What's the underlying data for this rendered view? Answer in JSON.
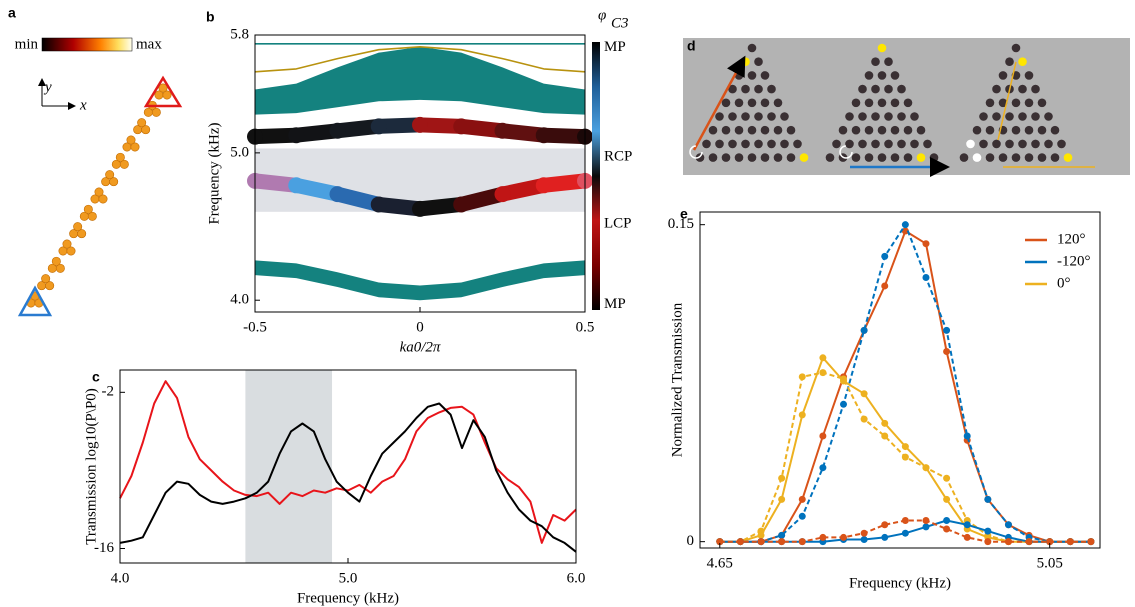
{
  "panel_a": {
    "label": "a",
    "colorbar": {
      "min": "min",
      "max": "max"
    },
    "axes": {
      "y": "y",
      "x": "x"
    }
  },
  "panel_d": {
    "label": "d"
  },
  "chart_data": [
    {
      "type": "band",
      "panel_label": "b",
      "xlabel": "ka0/2π",
      "ylabel": "Frequency (kHz)",
      "x": [
        -0.5,
        -0.375,
        -0.25,
        -0.125,
        0,
        0.125,
        0.25,
        0.375,
        0.5
      ],
      "xlim": [
        -0.5,
        0.5
      ],
      "ylim": [
        3.92,
        5.8
      ],
      "xticks": [
        -0.5,
        0,
        0.5
      ],
      "yticks": [
        {
          "value": 4.0,
          "label": "4.0"
        },
        {
          "value": 5.0,
          "label": "5.0"
        },
        5.8
      ],
      "shaded_range": [
        4.6,
        5.03
      ],
      "series": [
        {
          "kind": "area",
          "color": "#14827f",
          "upper": [
            5.43,
            5.47,
            5.58,
            5.68,
            5.72,
            5.68,
            5.58,
            5.47,
            5.43
          ],
          "lower": [
            5.26,
            5.27,
            5.31,
            5.35,
            5.36,
            5.35,
            5.31,
            5.27,
            5.26
          ]
        },
        {
          "kind": "area",
          "color": "#14827f",
          "upper": [
            4.27,
            4.25,
            4.19,
            4.12,
            4.1,
            4.12,
            4.19,
            4.25,
            4.27
          ],
          "lower": [
            4.17,
            4.15,
            4.09,
            4.02,
            4.0,
            4.02,
            4.09,
            4.15,
            4.17
          ]
        },
        {
          "kind": "line",
          "color": "#b8920f",
          "values": [
            5.55,
            5.57,
            5.64,
            5.7,
            5.72,
            5.7,
            5.64,
            5.57,
            5.55
          ]
        },
        {
          "kind": "line",
          "color": "#14827f",
          "values": [
            5.74,
            5.74,
            5.74,
            5.74,
            5.74,
            5.74,
            5.74,
            5.74,
            5.74
          ]
        },
        {
          "kind": "dots",
          "values": [
            5.11,
            5.12,
            5.15,
            5.18,
            5.19,
            5.18,
            5.15,
            5.12,
            5.11
          ],
          "point_colors": [
            "#111111",
            "#121316",
            "#15191f",
            "#1c2a3c",
            "#a01515",
            "#8a1010",
            "#601010",
            "#3a0c0c",
            "#1a0808"
          ]
        },
        {
          "kind": "dots",
          "values": [
            4.81,
            4.78,
            4.72,
            4.65,
            4.62,
            4.65,
            4.72,
            4.78,
            4.81
          ],
          "point_colors": [
            "#b07ab0",
            "#4aa0e0",
            "#2a6ab0",
            "#1a2030",
            "#101010",
            "#4a0a0a",
            "#c01515",
            "#e02020",
            "#e05060"
          ]
        }
      ],
      "colorbar": {
        "title": "φ",
        "title_subscript": "C3",
        "labels": [
          "MP",
          "RCP",
          "LCP",
          "MP"
        ],
        "colors": [
          "#000000",
          "#1f5f99",
          "#4aa0e0",
          "#0a0a0a",
          "#c01515",
          "#7a0000",
          "#000000"
        ]
      }
    },
    {
      "type": "line",
      "panel_label": "c",
      "xlabel": "Frequency (kHz)",
      "ylabel": "Transmission log10(P\\P0)",
      "x": [
        4.0,
        4.05,
        4.1,
        4.15,
        4.2,
        4.25,
        4.3,
        4.35,
        4.4,
        4.45,
        4.5,
        4.55,
        4.6,
        4.65,
        4.7,
        4.75,
        4.8,
        4.85,
        4.9,
        4.95,
        5.0,
        5.05,
        5.1,
        5.15,
        5.2,
        5.25,
        5.3,
        5.35,
        5.4,
        5.45,
        5.5,
        5.55,
        5.6,
        5.65,
        5.7,
        5.75,
        5.8,
        5.85,
        5.9,
        5.95,
        6.0
      ],
      "xlim": [
        4.0,
        6.0
      ],
      "ylim": [
        -17.3,
        0
      ],
      "xticks": [
        {
          "value": 4,
          "label": "4.0"
        },
        {
          "value": 5,
          "label": "5.0"
        },
        {
          "value": 6,
          "label": "6.0"
        }
      ],
      "yticks": [
        -2,
        -16
      ],
      "shaded_range": [
        4.55,
        4.93
      ],
      "series": [
        {
          "color": "#e8141a",
          "values": [
            -11.5,
            -9.5,
            -6.5,
            -3.0,
            -1.0,
            -2.5,
            -6.0,
            -8.0,
            -9.0,
            -10.0,
            -10.8,
            -11.2,
            -11.3,
            -11.0,
            -12.0,
            -11.0,
            -11.3,
            -10.8,
            -11.0,
            -10.6,
            -10.8,
            -10.3,
            -11.0,
            -10.0,
            -9.5,
            -8.0,
            -5.5,
            -4.3,
            -3.8,
            -3.4,
            -3.3,
            -4.0,
            -6.5,
            -8.8,
            -9.8,
            -10.5,
            -11.8,
            -15.5,
            -13.0,
            -13.5,
            -12.5
          ]
        },
        {
          "color": "#000000",
          "values": [
            -15.5,
            -15.3,
            -15.0,
            -13.0,
            -11.0,
            -10.0,
            -10.2,
            -11.2,
            -11.8,
            -12.0,
            -11.8,
            -11.5,
            -11.0,
            -10.0,
            -7.5,
            -5.5,
            -4.8,
            -5.5,
            -8.0,
            -10.0,
            -11.0,
            -11.8,
            -9.5,
            -7.5,
            -6.5,
            -5.5,
            -4.3,
            -3.3,
            -3.0,
            -4.0,
            -7.0,
            -4.5,
            -6.0,
            -9.0,
            -11.0,
            -12.5,
            -13.5,
            -14.0,
            -15.0,
            -15.5,
            -16.3
          ]
        }
      ]
    },
    {
      "type": "line",
      "panel_label": "e",
      "xlabel": "Frequency (kHz)",
      "ylabel": "Normalized Transmission",
      "x": [
        4.65,
        4.675,
        4.7,
        4.725,
        4.75,
        4.775,
        4.8,
        4.825,
        4.85,
        4.875,
        4.9,
        4.925,
        4.95,
        4.975,
        5.0,
        5.025,
        5.05,
        5.075,
        5.1
      ],
      "xlim": [
        4.626,
        5.111
      ],
      "ylim": [
        -0.003,
        0.156
      ],
      "xticks": [
        4.65,
        5.05
      ],
      "yticks": [
        0,
        0.15
      ],
      "legend": "upper right",
      "markers": true,
      "series": [
        {
          "name": "120°",
          "color": "#d95319",
          "dashed": false,
          "values": [
            0,
            0,
            0,
            0.003,
            0.02,
            0.05,
            0.078,
            0.1,
            0.121,
            0.147,
            0.141,
            0.09,
            0.048,
            0.02,
            0.008,
            0.003,
            0,
            0,
            0
          ]
        },
        {
          "name": "-120°",
          "color": "#0072bd",
          "dashed": true,
          "values": [
            0,
            0,
            0,
            0.003,
            0.012,
            0.035,
            0.065,
            0.1,
            0.135,
            0.15,
            0.125,
            0.1,
            0.05,
            0.02,
            0.008,
            0.002,
            0,
            0,
            0
          ]
        },
        {
          "name": "0°",
          "color": "#edb120",
          "dashed": false,
          "values": [
            0,
            0,
            0.003,
            0.02,
            0.06,
            0.087,
            0.076,
            0.07,
            0.056,
            0.045,
            0.035,
            0.02,
            0.006,
            0.002,
            0,
            0,
            0,
            0,
            0
          ]
        },
        {
          "color": "#edb120",
          "dashed": true,
          "values": [
            0,
            0,
            0.005,
            0.03,
            0.078,
            0.08,
            0.077,
            0.058,
            0.05,
            0.04,
            0.035,
            0.03,
            0.01,
            0.003,
            0,
            0,
            0,
            0,
            0
          ]
        },
        {
          "color": "#0072bd",
          "dashed": false,
          "values": [
            0,
            0,
            0,
            0,
            0,
            0,
            0.001,
            0.001,
            0.002,
            0.004,
            0.007,
            0.01,
            0.008,
            0.005,
            0.002,
            0,
            0,
            0,
            0
          ]
        },
        {
          "color": "#d95319",
          "dashed": true,
          "values": [
            0,
            0,
            0,
            0,
            0,
            0.002,
            0.002,
            0.004,
            0.008,
            0.01,
            0.01,
            0.006,
            0.002,
            0,
            0,
            0,
            0,
            0,
            0
          ]
        }
      ]
    }
  ]
}
